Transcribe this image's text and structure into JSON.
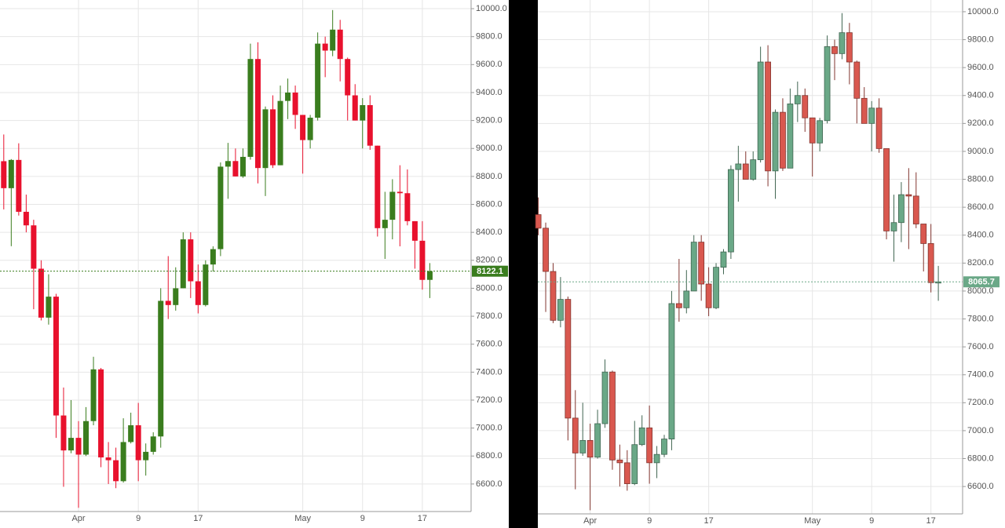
{
  "chart_data": [
    {
      "type": "candlestick",
      "categories": [
        null,
        null,
        null,
        null,
        null,
        null,
        null,
        null,
        null,
        null,
        "Apr",
        null,
        null,
        null,
        null,
        null,
        null,
        null,
        "9",
        null,
        null,
        null,
        null,
        null,
        null,
        null,
        "17",
        null,
        null,
        null,
        null,
        null,
        null,
        null,
        null,
        null,
        null,
        null,
        null,
        null,
        "May",
        null,
        null,
        null,
        null,
        null,
        null,
        null,
        "9",
        null,
        null,
        null,
        null,
        null,
        null,
        null,
        "17",
        null
      ],
      "open": [
        8909,
        8716,
        8918,
        8547,
        8450,
        8140,
        7790,
        7940,
        7090,
        6840,
        6930,
        6810,
        7050,
        7420,
        6790,
        6770,
        6620,
        6900,
        7020,
        6770,
        6830,
        6940,
        7910,
        7880,
        8000,
        8350,
        8050,
        7880,
        8170,
        8280,
        8870,
        8910,
        8800,
        8940,
        9640,
        8860,
        9280,
        8880,
        9340,
        9400,
        9240,
        9060,
        9220,
        9750,
        9700,
        9850,
        9640,
        9380,
        9200,
        9310,
        9020,
        8430,
        8490,
        8690,
        8680,
        8480,
        8340,
        8060
      ],
      "high": [
        9100,
        8924,
        9037,
        8670,
        8490,
        8200,
        8100,
        7960,
        7290,
        7200,
        7050,
        7150,
        7510,
        7430,
        6900,
        6860,
        7070,
        7110,
        7180,
        6890,
        6970,
        8000,
        8230,
        8150,
        8400,
        8400,
        8170,
        8200,
        8300,
        8900,
        9040,
        9000,
        9000,
        9750,
        9760,
        9300,
        9380,
        9450,
        9500,
        9450,
        9240,
        9240,
        9830,
        9800,
        9990,
        9920,
        9650,
        9460,
        9360,
        9380,
        9020,
        8690,
        8780,
        8880,
        8850,
        8480,
        8480,
        8180
      ],
      "low": [
        8564,
        8301,
        8520,
        8400,
        7850,
        7770,
        7740,
        6930,
        6580,
        6820,
        6430,
        6800,
        7020,
        6720,
        6600,
        6570,
        6610,
        6890,
        6620,
        6660,
        6810,
        6860,
        7780,
        7840,
        8000,
        7930,
        7820,
        7870,
        8120,
        8230,
        8640,
        8800,
        8790,
        8920,
        8750,
        8660,
        8860,
        8880,
        9210,
        9140,
        8820,
        9000,
        9200,
        9510,
        9660,
        9480,
        9200,
        9200,
        9000,
        8990,
        8370,
        8210,
        8350,
        8300,
        8450,
        8140,
        7990,
        7930
      ],
      "close": [
        8716,
        8918,
        8547,
        8450,
        8140,
        7790,
        7940,
        7090,
        6840,
        6930,
        6810,
        7050,
        7420,
        6790,
        6770,
        6620,
        6900,
        7020,
        6770,
        6830,
        6940,
        7910,
        7880,
        8000,
        8350,
        8050,
        7880,
        8170,
        8280,
        8870,
        8910,
        8800,
        8940,
        9640,
        8860,
        9280,
        8880,
        9340,
        9400,
        9240,
        9060,
        9220,
        9750,
        9700,
        9850,
        9640,
        9380,
        9200,
        9310,
        9020,
        8430,
        8490,
        8690,
        8680,
        8480,
        8340,
        8060,
        8122.1
      ],
      "up_color": "#3a7d1e",
      "down_color": "#e8112d",
      "last_price": 8122.1,
      "ylim": [
        6403,
        10062
      ],
      "yticks": [
        {
          "value": 6600,
          "label": "6600.0"
        },
        {
          "value": 6800,
          "label": "6800.0"
        },
        {
          "value": 7000,
          "label": "7000.0"
        },
        {
          "value": 7200,
          "label": "7200.0"
        },
        {
          "value": 7400,
          "label": "7400.0"
        },
        {
          "value": 7600,
          "label": "7600.0"
        },
        {
          "value": 7800,
          "label": "7800.0"
        },
        {
          "value": 8000,
          "label": "8000.0"
        },
        {
          "value": 8200,
          "label": "8200.0"
        },
        {
          "value": 8400,
          "label": "8400.0"
        },
        {
          "value": 8600,
          "label": "8600.0"
        },
        {
          "value": 8800,
          "label": "8800.0"
        },
        {
          "value": 9000,
          "label": "9000.0"
        },
        {
          "value": 9200,
          "label": "9200.0"
        },
        {
          "value": 9400,
          "label": "9400.0"
        },
        {
          "value": 9600,
          "label": "9600.0"
        },
        {
          "value": 9800,
          "label": "9800.0"
        },
        {
          "value": 10000,
          "label": "10000.0"
        }
      ],
      "grid": true
    },
    {
      "type": "candlestick",
      "categories": [
        null,
        null,
        null,
        null,
        null,
        null,
        null,
        "Apr",
        null,
        null,
        null,
        null,
        null,
        null,
        null,
        "9",
        null,
        null,
        null,
        null,
        null,
        null,
        null,
        "17",
        null,
        null,
        null,
        null,
        null,
        null,
        null,
        null,
        null,
        null,
        null,
        null,
        null,
        "May",
        null,
        null,
        null,
        null,
        null,
        null,
        null,
        "9",
        null,
        null,
        null,
        null,
        null,
        null,
        null,
        "17",
        null
      ],
      "open": [
        8547,
        8450,
        8140,
        7790,
        7940,
        7090,
        6840,
        6930,
        6810,
        7050,
        7420,
        6790,
        6770,
        6620,
        6900,
        7020,
        6770,
        6830,
        6940,
        7910,
        7880,
        8000,
        8350,
        8050,
        7880,
        8170,
        8280,
        8870,
        8910,
        8800,
        8940,
        9640,
        8860,
        9280,
        8880,
        9340,
        9400,
        9240,
        9060,
        9220,
        9750,
        9700,
        9850,
        9640,
        9380,
        9200,
        9310,
        9020,
        8430,
        8490,
        8690,
        8680,
        8480,
        8340,
        8060
      ],
      "high": [
        8670,
        8490,
        8200,
        8100,
        7960,
        7290,
        7200,
        7050,
        7150,
        7510,
        7430,
        6900,
        6860,
        7070,
        7110,
        7180,
        6890,
        6970,
        8000,
        8230,
        8150,
        8400,
        8400,
        8170,
        8200,
        8300,
        8900,
        9040,
        9000,
        9000,
        9750,
        9760,
        9300,
        9380,
        9450,
        9500,
        9450,
        9240,
        9240,
        9830,
        9800,
        9990,
        9920,
        9650,
        9460,
        9360,
        9380,
        9020,
        8690,
        8780,
        8880,
        8850,
        8480,
        8480,
        8180
      ],
      "low": [
        8400,
        7850,
        7770,
        7740,
        6930,
        6580,
        6820,
        6430,
        6800,
        7020,
        6720,
        6600,
        6570,
        6610,
        6890,
        6620,
        6660,
        6810,
        6860,
        7780,
        7840,
        8000,
        7930,
        7820,
        7870,
        8120,
        8230,
        8640,
        8800,
        8790,
        8920,
        8750,
        8660,
        8860,
        8880,
        9210,
        9140,
        8820,
        9000,
        9200,
        9510,
        9660,
        9480,
        9200,
        9200,
        9000,
        8990,
        8370,
        8210,
        8350,
        8300,
        8450,
        8140,
        7990,
        7930
      ],
      "close": [
        8450,
        8140,
        7790,
        7940,
        7090,
        6840,
        6930,
        6810,
        7050,
        7420,
        6790,
        6770,
        6620,
        6900,
        7020,
        6770,
        6830,
        6940,
        7910,
        7880,
        8000,
        8350,
        8050,
        7880,
        8170,
        8280,
        8870,
        8910,
        8800,
        8940,
        9640,
        8860,
        9280,
        8880,
        9340,
        9400,
        9240,
        9060,
        9220,
        9750,
        9700,
        9850,
        9640,
        9380,
        9200,
        9310,
        9020,
        8430,
        8490,
        8690,
        8680,
        8480,
        8340,
        8060,
        8065.7
      ],
      "up_color": "#6aa887",
      "down_color": "#d9584f",
      "last_price": 8065.7,
      "ylim": [
        6404,
        10084
      ],
      "yticks": [
        {
          "value": 6600,
          "label": "6600.0"
        },
        {
          "value": 6800,
          "label": "6800.0"
        },
        {
          "value": 7000,
          "label": "7000.0"
        },
        {
          "value": 7200,
          "label": "7200.0"
        },
        {
          "value": 7400,
          "label": "7400.0"
        },
        {
          "value": 7600,
          "label": "7600.0"
        },
        {
          "value": 7800,
          "label": "7800.0"
        },
        {
          "value": 8000,
          "label": "8000.0"
        },
        {
          "value": 8200,
          "label": "8200.0"
        },
        {
          "value": 8400,
          "label": "8400.0"
        },
        {
          "value": 8600,
          "label": "8600.0"
        },
        {
          "value": 8800,
          "label": "8800.0"
        },
        {
          "value": 9000,
          "label": "9000.0"
        },
        {
          "value": 9200,
          "label": "9200.0"
        },
        {
          "value": 9400,
          "label": "9400.0"
        },
        {
          "value": 9600,
          "label": "9600.0"
        },
        {
          "value": 9800,
          "label": "9800.0"
        },
        {
          "value": 10000,
          "label": "10000.0"
        }
      ],
      "grid": true
    }
  ]
}
